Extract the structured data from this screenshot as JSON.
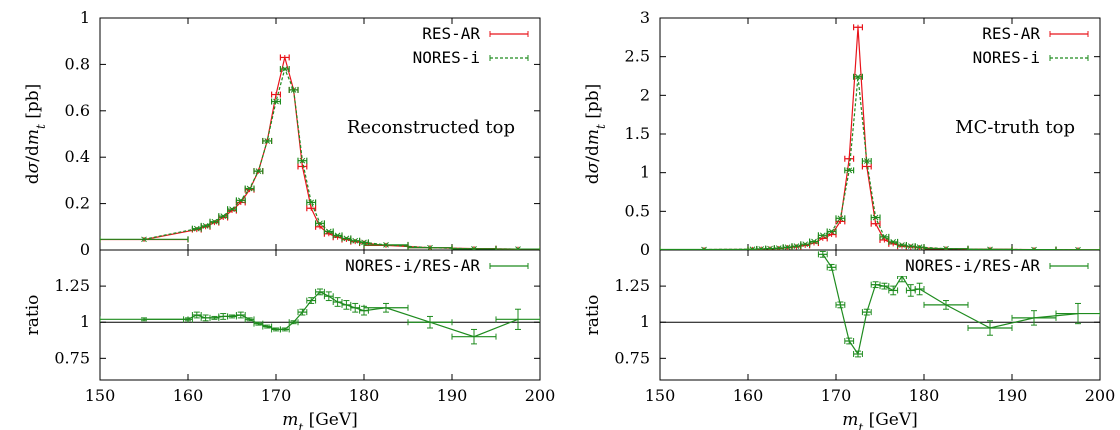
{
  "colors": {
    "res": "#e8141b",
    "nores": "#1e8b1e",
    "axis": "#000000",
    "refline": "#555555"
  },
  "chart_data": [
    {
      "type": "line",
      "annotation": "Reconstructed top",
      "xlabel": "m_t [GeV]",
      "xlim": [
        150,
        200
      ],
      "xticks": [
        "150",
        "160",
        "170",
        "180",
        "190",
        "200"
      ],
      "top": {
        "ylabel": "dσ/dm_t [pb]",
        "ylim": [
          0,
          1
        ],
        "yticks": [
          "0",
          "0.2",
          "0.4",
          "0.6",
          "0.8",
          "1"
        ],
        "legend_position": "top-right",
        "series": [
          {
            "name": "RES-AR",
            "color": "#e8141b",
            "x": [
              155,
              161,
              162,
              163,
              164,
              165,
              166,
              167,
              168,
              169,
              170,
              171,
              172,
              173,
              174,
              175,
              176,
              177,
              178,
              179,
              180,
              182.5,
              187.5,
              192.5,
              197.5
            ],
            "y": [
              0.045,
              0.088,
              0.1,
              0.118,
              0.14,
              0.17,
              0.205,
              0.26,
              0.34,
              0.47,
              0.67,
              0.83,
              0.69,
              0.36,
              0.18,
              0.1,
              0.07,
              0.055,
              0.045,
              0.036,
              0.03,
              0.02,
              0.01,
              0.006,
              0.004
            ],
            "xerr": [
              5,
              0.5,
              0.5,
              0.5,
              0.5,
              0.5,
              0.5,
              0.5,
              0.5,
              0.5,
              0.5,
              0.5,
              0.5,
              0.5,
              0.5,
              0.5,
              0.5,
              0.5,
              0.5,
              0.5,
              0.5,
              2.5,
              2.5,
              2.5,
              2.5
            ]
          },
          {
            "name": "NORES-i",
            "color": "#1e8b1e",
            "dashed": true,
            "x": [
              155,
              161,
              162,
              163,
              164,
              165,
              166,
              167,
              168,
              169,
              170,
              171,
              172,
              173,
              174,
              175,
              176,
              177,
              178,
              179,
              180,
              182.5,
              187.5,
              192.5,
              197.5
            ],
            "y": [
              0.046,
              0.092,
              0.104,
              0.122,
              0.146,
              0.176,
              0.214,
              0.265,
              0.34,
              0.47,
              0.64,
              0.78,
              0.69,
              0.385,
              0.205,
              0.115,
              0.08,
              0.063,
              0.05,
              0.04,
              0.033,
              0.022,
              0.01,
              0.005,
              0.004
            ],
            "xerr": [
              5,
              0.5,
              0.5,
              0.5,
              0.5,
              0.5,
              0.5,
              0.5,
              0.5,
              0.5,
              0.5,
              0.5,
              0.5,
              0.5,
              0.5,
              0.5,
              0.5,
              0.5,
              0.5,
              0.5,
              0.5,
              2.5,
              2.5,
              2.5,
              2.5
            ]
          }
        ]
      },
      "ratio": {
        "ylabel": "ratio",
        "ylim": [
          0.6,
          1.5
        ],
        "yticks": [
          "0.75",
          "1",
          "1.25"
        ],
        "reference": 1,
        "series": [
          {
            "name": "NORES-i/RES-AR",
            "color": "#1e8b1e",
            "x": [
              155,
              160,
              161,
              162,
              163,
              164,
              165,
              166,
              167,
              168,
              169,
              170,
              171,
              172,
              173,
              174,
              175,
              176,
              177,
              178,
              179,
              180,
              182.5,
              187.5,
              192.5,
              197.5
            ],
            "y": [
              1.02,
              1.02,
              1.05,
              1.03,
              1.03,
              1.04,
              1.04,
              1.05,
              1.02,
              0.99,
              0.97,
              0.95,
              0.95,
              1.0,
              1.07,
              1.15,
              1.21,
              1.18,
              1.14,
              1.12,
              1.1,
              1.08,
              1.1,
              1.0,
              0.9,
              1.02
            ],
            "xerr": [
              5,
              0.5,
              0.5,
              0.5,
              0.5,
              0.5,
              0.5,
              0.5,
              0.5,
              0.5,
              0.5,
              0.5,
              0.5,
              0.5,
              0.5,
              0.5,
              0.5,
              0.5,
              0.5,
              0.5,
              0.5,
              0.5,
              2.5,
              2.5,
              2.5,
              2.5
            ],
            "yerr": [
              0.01,
              0.01,
              0.02,
              0.02,
              0.01,
              0.02,
              0.01,
              0.02,
              0.01,
              0.01,
              0.01,
              0.01,
              0.01,
              0.01,
              0.02,
              0.02,
              0.02,
              0.03,
              0.03,
              0.03,
              0.03,
              0.03,
              0.03,
              0.04,
              0.05,
              0.07
            ]
          }
        ]
      }
    },
    {
      "type": "line",
      "annotation": "MC-truth top",
      "xlabel": "m_t [GeV]",
      "xlim": [
        150,
        200
      ],
      "xticks": [
        "150",
        "160",
        "170",
        "180",
        "190",
        "200"
      ],
      "top": {
        "ylabel": "dσ/dm_t [pb]",
        "ylim": [
          0,
          3
        ],
        "yticks": [
          "0",
          "0.5",
          "1",
          "1.5",
          "2",
          "2.5",
          "3"
        ],
        "legend_position": "top-right",
        "series": [
          {
            "name": "RES-AR",
            "color": "#e8141b",
            "x": [
              155,
              160.5,
              161.5,
              162.5,
              163.5,
              164.5,
              165.5,
              166.5,
              167.5,
              168.5,
              169.5,
              170.5,
              171.5,
              172.5,
              173.5,
              174.5,
              175.5,
              176.5,
              177.5,
              178.5,
              179.5,
              182.5,
              187.5,
              192.5,
              197.5
            ],
            "y": [
              0.005,
              0.008,
              0.012,
              0.015,
              0.02,
              0.03,
              0.04,
              0.06,
              0.09,
              0.15,
              0.2,
              0.37,
              1.18,
              2.88,
              1.08,
              0.34,
              0.13,
              0.08,
              0.05,
              0.04,
              0.03,
              0.015,
              0.008,
              0.005,
              0.003
            ],
            "xerr": [
              5,
              0.5,
              0.5,
              0.5,
              0.5,
              0.5,
              0.5,
              0.5,
              0.5,
              0.5,
              0.5,
              0.5,
              0.5,
              0.5,
              0.5,
              0.5,
              0.5,
              0.5,
              0.5,
              0.5,
              0.5,
              2.5,
              2.5,
              2.5,
              2.5
            ]
          },
          {
            "name": "NORES-i",
            "color": "#1e8b1e",
            "dashed": true,
            "x": [
              155,
              160.5,
              161.5,
              162.5,
              163.5,
              164.5,
              165.5,
              166.5,
              167.5,
              168.5,
              169.5,
              170.5,
              171.5,
              172.5,
              173.5,
              174.5,
              175.5,
              176.5,
              177.5,
              178.5,
              179.5,
              182.5,
              187.5,
              192.5,
              197.5
            ],
            "y": [
              0.006,
              0.01,
              0.014,
              0.018,
              0.024,
              0.036,
              0.05,
              0.075,
              0.11,
              0.19,
              0.24,
              0.41,
              1.03,
              2.24,
              1.15,
              0.42,
              0.17,
              0.105,
              0.065,
              0.05,
              0.037,
              0.017,
              0.008,
              0.005,
              0.003
            ],
            "xerr": [
              5,
              0.5,
              0.5,
              0.5,
              0.5,
              0.5,
              0.5,
              0.5,
              0.5,
              0.5,
              0.5,
              0.5,
              0.5,
              0.5,
              0.5,
              0.5,
              0.5,
              0.5,
              0.5,
              0.5,
              0.5,
              2.5,
              2.5,
              2.5,
              2.5
            ]
          }
        ]
      },
      "ratio": {
        "ylabel": "ratio",
        "ylim": [
          0.6,
          1.5
        ],
        "yticks": [
          "0.75",
          "1",
          "1.25"
        ],
        "reference": 1,
        "series": [
          {
            "name": "NORES-i/RES-AR",
            "color": "#1e8b1e",
            "x": [
              168.5,
              169.5,
              170.5,
              171.5,
              172.5,
              173.5,
              174.5,
              175.5,
              176.5,
              177.5,
              178.5,
              179.5,
              182.5,
              187.5,
              192.5,
              197.5
            ],
            "y": [
              1.47,
              1.38,
              1.12,
              0.87,
              0.78,
              1.07,
              1.26,
              1.25,
              1.22,
              1.32,
              1.22,
              1.23,
              1.12,
              0.96,
              1.03,
              1.06
            ],
            "xerr": [
              0.5,
              0.5,
              0.5,
              0.5,
              0.5,
              0.5,
              0.5,
              0.5,
              0.5,
              0.5,
              0.5,
              0.5,
              2.5,
              2.5,
              2.5,
              2.5
            ],
            "yerr": [
              0.02,
              0.02,
              0.02,
              0.02,
              0.02,
              0.02,
              0.02,
              0.02,
              0.03,
              0.04,
              0.04,
              0.04,
              0.03,
              0.05,
              0.05,
              0.07
            ]
          }
        ]
      }
    }
  ]
}
